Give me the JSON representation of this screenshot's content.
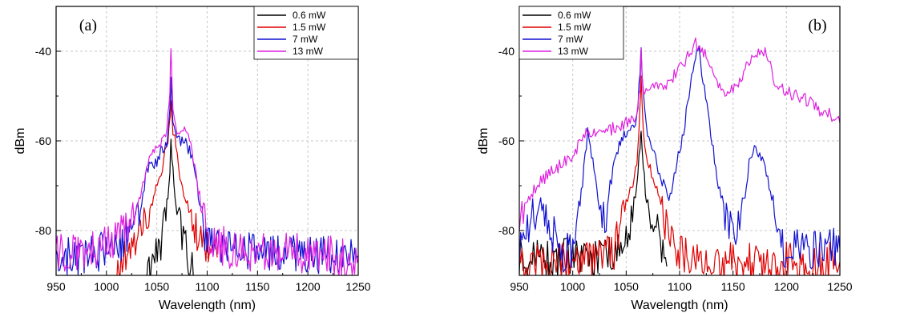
{
  "chart_data": [
    {
      "type": "line",
      "panel_label": "(a)",
      "xlabel": "Wavelength (nm)",
      "ylabel": "dBm",
      "xlim": [
        950,
        1250
      ],
      "ylim": [
        -90,
        -30
      ],
      "xticks": [
        950,
        1000,
        1050,
        1100,
        1150,
        1200,
        1250
      ],
      "yticks": [
        -80,
        -60,
        -40
      ],
      "grid": true,
      "legend_position": "top-right",
      "series": [
        {
          "name": "0.6 mW",
          "color": "#000000",
          "x": [
            1040,
            1048,
            1054,
            1058,
            1061,
            1063,
            1064,
            1066,
            1068,
            1071,
            1075,
            1080,
            1085,
            1090
          ],
          "y": [
            -90,
            -87,
            -83,
            -78,
            -72,
            -66,
            -60,
            -67,
            -73,
            -78,
            -80,
            -84,
            -88,
            -90
          ]
        },
        {
          "name": "1.5 mW",
          "color": "#e00000",
          "x": [
            1010,
            1025,
            1035,
            1042,
            1048,
            1053,
            1058,
            1061,
            1063,
            1064,
            1066,
            1069,
            1073,
            1078,
            1083,
            1090,
            1100,
            1110
          ],
          "y": [
            -88,
            -84,
            -80,
            -76,
            -71,
            -68,
            -63,
            -60,
            -55,
            -52,
            -58,
            -61,
            -68,
            -72,
            -76,
            -80,
            -84,
            -86
          ]
        },
        {
          "name": "7 mW",
          "color": "#1010d0",
          "x": [
            950,
            990,
            1010,
            1025,
            1035,
            1040,
            1045,
            1050,
            1055,
            1060,
            1063,
            1064,
            1066,
            1070,
            1075,
            1080,
            1085,
            1090,
            1095,
            1100,
            1120,
            1150,
            1200,
            1250
          ],
          "y": [
            -86,
            -85,
            -84,
            -80,
            -74,
            -66,
            -66,
            -65,
            -62,
            -60,
            -52,
            -47,
            -55,
            -59,
            -60,
            -61,
            -63,
            -70,
            -78,
            -82,
            -84,
            -85,
            -85,
            -86
          ]
        },
        {
          "name": "13 mW",
          "color": "#e020e0",
          "x": [
            950,
            990,
            1010,
            1025,
            1035,
            1040,
            1045,
            1050,
            1055,
            1060,
            1063,
            1064,
            1066,
            1070,
            1075,
            1080,
            1085,
            1090,
            1095,
            1100,
            1120,
            1150,
            1200,
            1250
          ],
          "y": [
            -85,
            -84,
            -82,
            -78,
            -72,
            -65,
            -63,
            -62,
            -60,
            -57,
            -49,
            -39,
            -54,
            -58,
            -57,
            -59,
            -62,
            -69,
            -76,
            -81,
            -84,
            -85,
            -85,
            -86
          ]
        }
      ]
    },
    {
      "type": "line",
      "panel_label": "(b)",
      "xlabel": "Wavelength (nm)",
      "ylabel": "dBm",
      "xlim": [
        950,
        1250
      ],
      "ylim": [
        -90,
        -30
      ],
      "xticks": [
        950,
        1000,
        1050,
        1100,
        1150,
        1200,
        1250
      ],
      "yticks": [
        -80,
        -60,
        -40
      ],
      "grid": true,
      "legend_position": "top-left",
      "series": [
        {
          "name": "0.6 mW",
          "color": "#000000",
          "x": [
            950,
            980,
            1000,
            1020,
            1040,
            1050,
            1056,
            1060,
            1063,
            1064,
            1066,
            1069,
            1073,
            1078,
            1082,
            1088
          ],
          "y": [
            -86,
            -86,
            -86,
            -86,
            -84,
            -82,
            -76,
            -69,
            -62,
            -58,
            -66,
            -73,
            -77,
            -78,
            -83,
            -88
          ]
        },
        {
          "name": "1.5 mW",
          "color": "#e00000",
          "x": [
            950,
            1000,
            1030,
            1040,
            1046,
            1050,
            1055,
            1060,
            1063,
            1064,
            1066,
            1070,
            1075,
            1080,
            1085,
            1095,
            1120,
            1150,
            1200,
            1250
          ],
          "y": [
            -87,
            -87,
            -86,
            -84,
            -76,
            -74,
            -70,
            -66,
            -52,
            -46,
            -58,
            -64,
            -68,
            -72,
            -78,
            -85,
            -87,
            -87,
            -87,
            -87
          ]
        },
        {
          "name": "7 mW",
          "color": "#1010d0",
          "x": [
            950,
            960,
            970,
            980,
            990,
            1000,
            1008,
            1014,
            1020,
            1025,
            1030,
            1035,
            1040,
            1048,
            1055,
            1060,
            1063,
            1064,
            1066,
            1070,
            1075,
            1080,
            1085,
            1090,
            1095,
            1100,
            1105,
            1110,
            1115,
            1118,
            1122,
            1128,
            1135,
            1145,
            1150,
            1155,
            1160,
            1165,
            1170,
            1175,
            1180,
            1185,
            1190,
            1195,
            1200,
            1210,
            1220,
            1235,
            1250
          ],
          "y": [
            -84,
            -78,
            -74,
            -80,
            -85,
            -84,
            -72,
            -58,
            -66,
            -74,
            -79,
            -70,
            -63,
            -58,
            -57,
            -55,
            -45,
            -39,
            -50,
            -58,
            -62,
            -66,
            -70,
            -73,
            -68,
            -62,
            -56,
            -48,
            -41,
            -40,
            -47,
            -56,
            -68,
            -78,
            -82,
            -80,
            -74,
            -65,
            -61,
            -63,
            -66,
            -72,
            -80,
            -84,
            -85,
            -84,
            -85,
            -83,
            -84
          ]
        },
        {
          "name": "13 mW",
          "color": "#e020e0",
          "x": [
            950,
            960,
            970,
            980,
            990,
            1000,
            1010,
            1015,
            1020,
            1030,
            1040,
            1050,
            1055,
            1060,
            1063,
            1064,
            1066,
            1070,
            1080,
            1090,
            1100,
            1105,
            1110,
            1115,
            1120,
            1125,
            1130,
            1140,
            1150,
            1155,
            1160,
            1165,
            1170,
            1175,
            1180,
            1185,
            1190,
            1200,
            1210,
            1220,
            1230,
            1240,
            1250
          ],
          "y": [
            -78,
            -72,
            -69,
            -67,
            -65,
            -63,
            -59,
            -58,
            -58,
            -58,
            -57,
            -56,
            -55,
            -54,
            -48,
            -40,
            -50,
            -49,
            -48,
            -47,
            -44,
            -42,
            -40,
            -38,
            -40,
            -41,
            -44,
            -49,
            -48,
            -47,
            -45,
            -42,
            -40,
            -41,
            -40,
            -43,
            -48,
            -49,
            -50,
            -51,
            -53,
            -54,
            -56
          ]
        }
      ]
    }
  ]
}
